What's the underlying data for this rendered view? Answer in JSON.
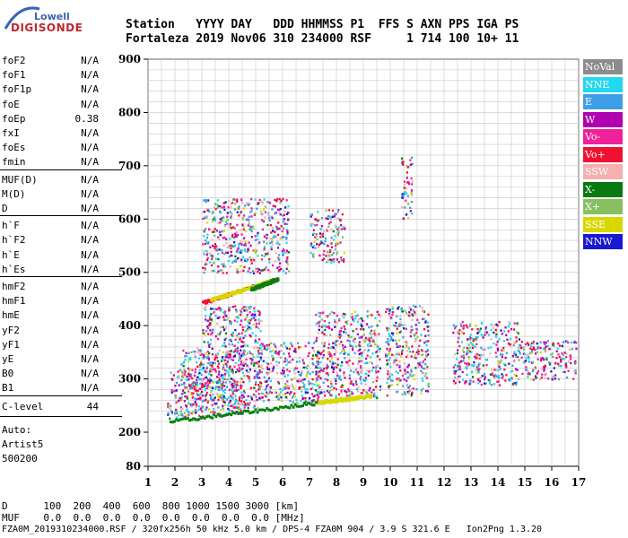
{
  "logo": {
    "brand_top": "Lowell",
    "brand_main": "DIGISONDE"
  },
  "header": {
    "line1": "Station   YYYY DAY   DDD HHMMSS P1  FFS S AXN PPS IGA PS",
    "line2": "Fortaleza 2019 Nov06 310 234000 RSF     1 714 100 10+ 11"
  },
  "params": {
    "group1": [
      {
        "name": "foF2",
        "value": "N/A"
      },
      {
        "name": "foF1",
        "value": "N/A"
      },
      {
        "name": "foF1p",
        "value": "N/A"
      },
      {
        "name": "foE",
        "value": "N/A"
      },
      {
        "name": "foEp",
        "value": "0.38"
      },
      {
        "name": "fxI",
        "value": "N/A"
      },
      {
        "name": "foEs",
        "value": "N/A"
      },
      {
        "name": "fmin",
        "value": "N/A"
      }
    ],
    "group2": [
      {
        "name": "MUF(D)",
        "value": "N/A"
      },
      {
        "name": "M(D)",
        "value": "N/A"
      },
      {
        "name": "D",
        "value": "N/A"
      }
    ],
    "group3": [
      {
        "name": "h`F",
        "value": "N/A"
      },
      {
        "name": "h`F2",
        "value": "N/A"
      },
      {
        "name": "h`E",
        "value": "N/A"
      },
      {
        "name": "h`Es",
        "value": "N/A"
      }
    ],
    "group4": [
      {
        "name": "hmF2",
        "value": "N/A"
      },
      {
        "name": "hmF1",
        "value": "N/A"
      },
      {
        "name": "hmE",
        "value": "N/A"
      },
      {
        "name": "yF2",
        "value": "N/A"
      },
      {
        "name": "yF1",
        "value": "N/A"
      },
      {
        "name": "yE",
        "value": "N/A"
      },
      {
        "name": "B0",
        "value": "N/A"
      },
      {
        "name": "B1",
        "value": "N/A"
      }
    ],
    "clevel": {
      "name": "C-level",
      "value": "44"
    },
    "auto": [
      "Auto:",
      "Artist5",
      "500200"
    ]
  },
  "legend": [
    {
      "label": "NoVal",
      "color": "#8c8c8c"
    },
    {
      "label": "NNE",
      "color": "#22d8f0"
    },
    {
      "label": "E",
      "color": "#3f9ee8"
    },
    {
      "label": "W",
      "color": "#b000b0"
    },
    {
      "label": "Vo-",
      "color": "#f0209a"
    },
    {
      "label": "Vo+",
      "color": "#f01030"
    },
    {
      "label": "SSW",
      "color": "#f5b0b0"
    },
    {
      "label": "X-",
      "color": "#087a10"
    },
    {
      "label": "X+",
      "color": "#88c060"
    },
    {
      "label": "SSE",
      "color": "#d8d800"
    },
    {
      "label": "NNW",
      "color": "#1818d0"
    }
  ],
  "footer": {
    "d_line": "D      100  200  400  600  800 1000 1500 3000 [km]",
    "muf_line": "MUF    0.0  0.0  0.0  0.0  0.0  0.0  0.0  0.0 [MHz]",
    "info_line": "FZA0M_2019310234000.RSF / 320fx256h 50 kHz 5.0 km / DPS-4 FZA0M 904 / 3.9 S 321.6 E   Ion2Png 1.3.20"
  },
  "chart_data": {
    "type": "scatter",
    "xlim": [
      1,
      17
    ],
    "ylim": [
      80,
      900
    ],
    "x_ticks": [
      1,
      2,
      3,
      4,
      5,
      6,
      7,
      8,
      9,
      10,
      11,
      12,
      13,
      14,
      15,
      16,
      17
    ],
    "y_ticks": [
      80,
      200,
      300,
      400,
      500,
      600,
      700,
      800,
      900
    ],
    "grid": true,
    "regions": [
      {
        "x0": 1.7,
        "x1": 3.0,
        "y0": 225,
        "y1": 320
      },
      {
        "x0": 2.2,
        "x1": 4.6,
        "y0": 235,
        "y1": 360
      },
      {
        "x0": 3.0,
        "x1": 5.2,
        "y0": 245,
        "y1": 440
      },
      {
        "x0": 5.0,
        "x1": 7.4,
        "y0": 255,
        "y1": 370
      },
      {
        "x0": 7.2,
        "x1": 9.6,
        "y0": 265,
        "y1": 430
      },
      {
        "x0": 9.8,
        "x1": 11.4,
        "y0": 270,
        "y1": 440
      },
      {
        "x0": 12.3,
        "x1": 14.8,
        "y0": 290,
        "y1": 410
      },
      {
        "x0": 14.8,
        "x1": 16.9,
        "y0": 300,
        "y1": 375
      },
      {
        "x0": 3.0,
        "x1": 6.2,
        "y0": 500,
        "y1": 640
      },
      {
        "x0": 7.0,
        "x1": 8.3,
        "y0": 520,
        "y1": 620
      },
      {
        "x0": 10.4,
        "x1": 10.8,
        "y0": 600,
        "y1": 720
      }
    ],
    "traces": [
      {
        "x0": 1.8,
        "x1": 7.4,
        "y0": 222,
        "y1": 258,
        "color": "#088010"
      },
      {
        "x0": 7.3,
        "x1": 9.3,
        "y0": 258,
        "y1": 270,
        "color": "#d8d800"
      },
      {
        "x0": 3.0,
        "x1": 5.7,
        "y0": 445,
        "y1": 488,
        "color": "#f01030"
      },
      {
        "x0": 3.3,
        "x1": 5.6,
        "y0": 450,
        "y1": 487,
        "color": "#d8d800"
      },
      {
        "x0": 4.8,
        "x1": 5.8,
        "y0": 470,
        "y1": 490,
        "color": "#088010"
      }
    ]
  }
}
